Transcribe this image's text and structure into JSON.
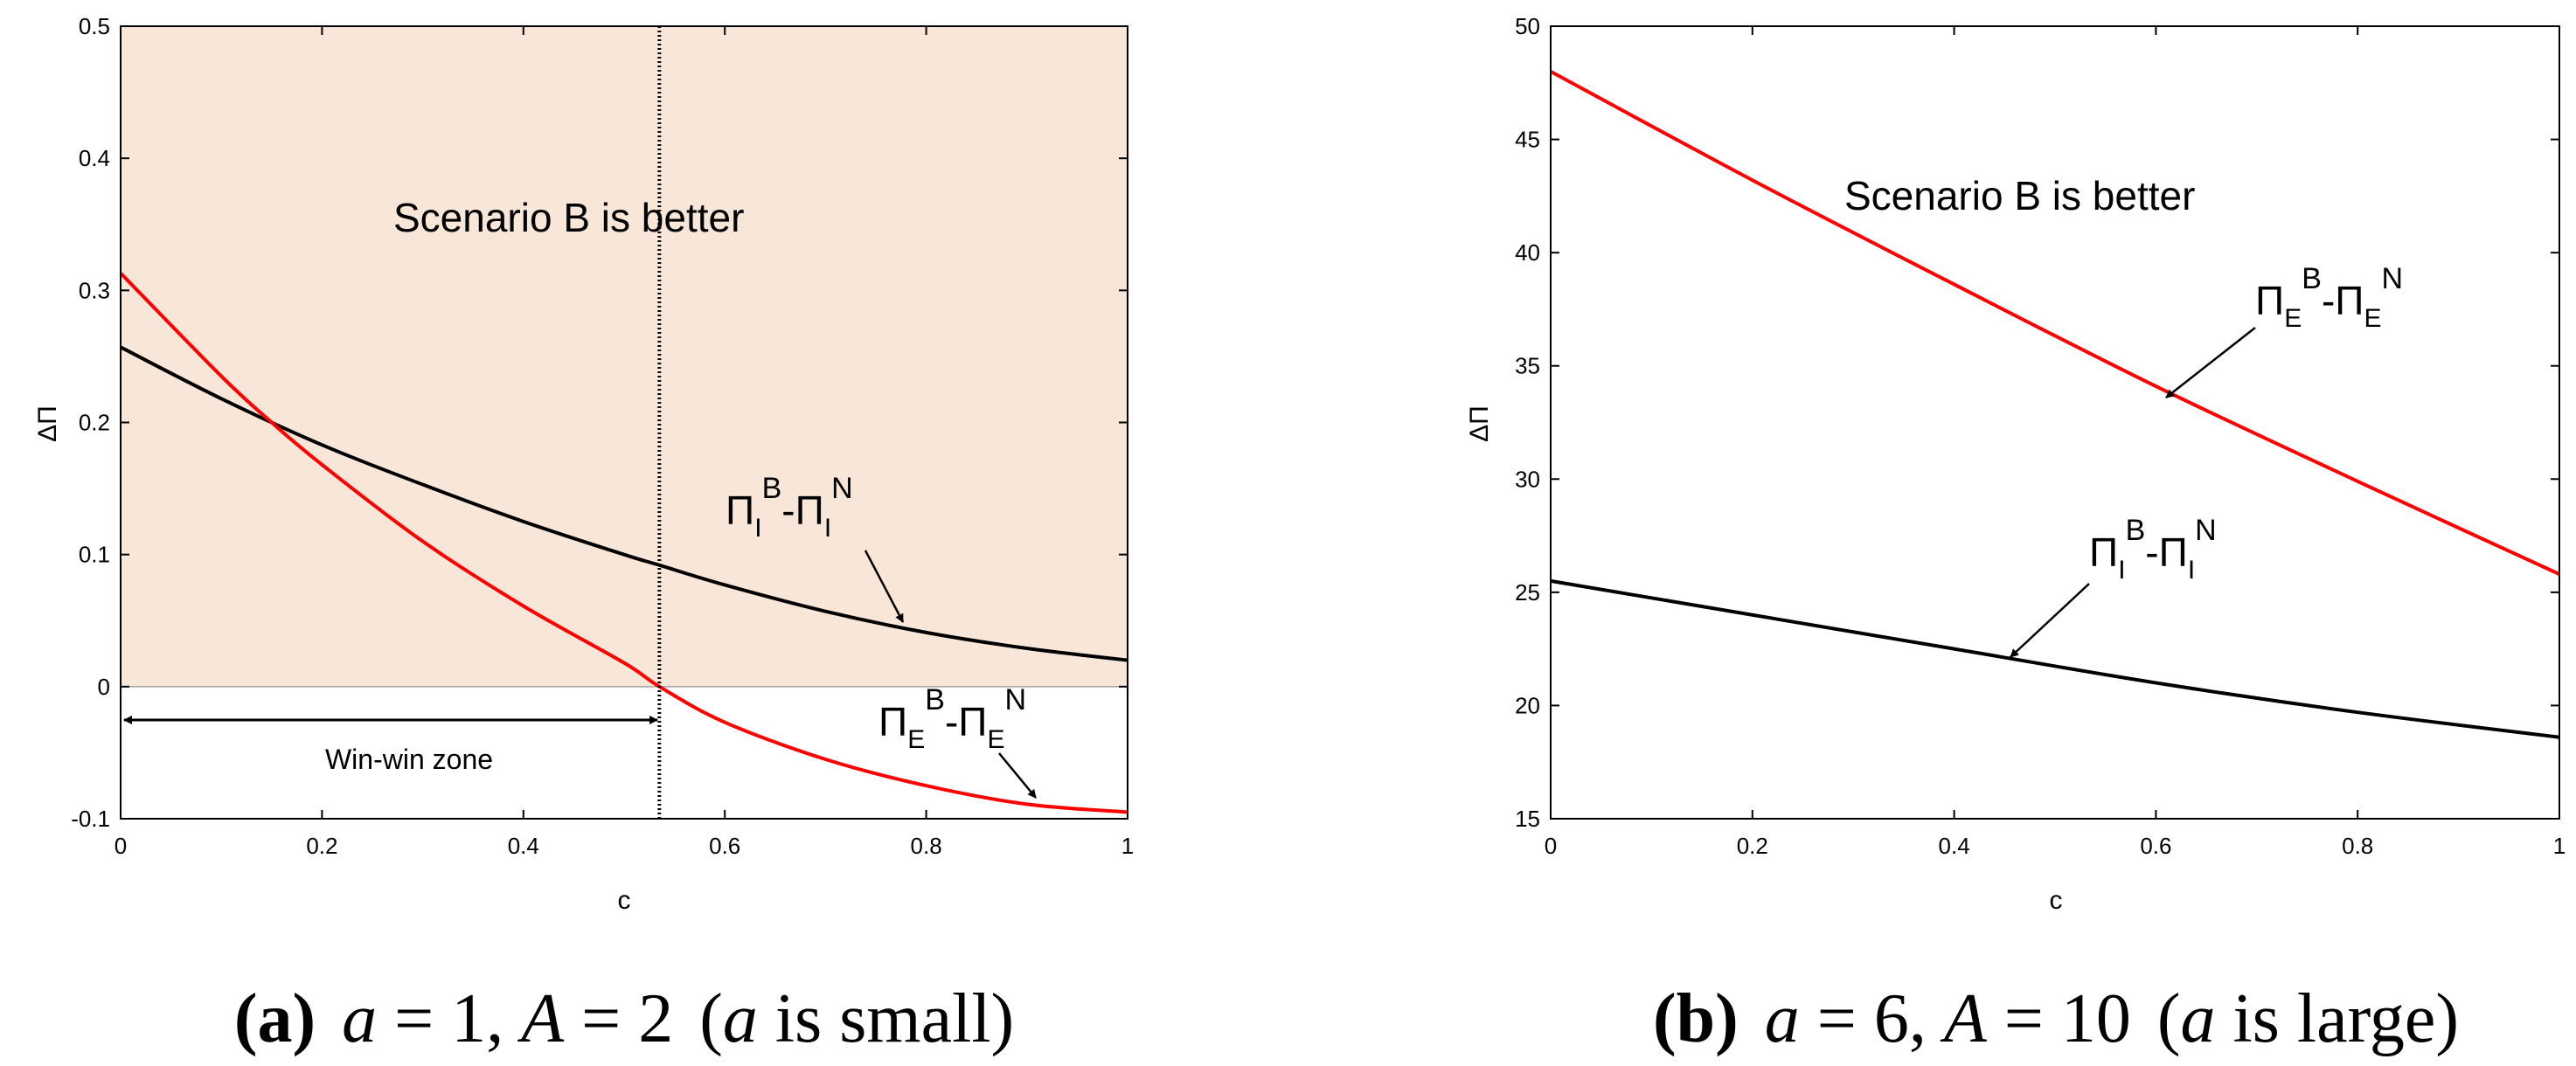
{
  "chart_data": [
    {
      "type": "line",
      "panel": "a",
      "xlabel": "c",
      "ylabel": "ΔΠ",
      "xlim": [
        0,
        1
      ],
      "ylim": [
        -0.1,
        0.5
      ],
      "xticks": [
        "0",
        "0.2",
        "0.4",
        "0.6",
        "0.8",
        "1"
      ],
      "yticks": [
        "-0.1",
        "0",
        "0.1",
        "0.2",
        "0.3",
        "0.4",
        "0.5"
      ],
      "region_text": "Scenario B is better",
      "region_color": "#f8e6d8",
      "threshold_c": 0.535,
      "zone_label": "Win-win zone",
      "series": [
        {
          "name": "Π_I^B - Π_I^N",
          "base": "Π",
          "sub": "I",
          "sup1": "B",
          "minus": "-",
          "sup2": "N",
          "color": "#000000",
          "x": [
            0,
            0.1,
            0.2,
            0.3,
            0.4,
            0.5,
            0.535,
            0.6,
            0.7,
            0.8,
            0.9,
            1.0
          ],
          "values": [
            0.257,
            0.218,
            0.183,
            0.153,
            0.125,
            0.1,
            0.092,
            0.077,
            0.057,
            0.041,
            0.029,
            0.02
          ]
        },
        {
          "name": "Π_E^B - Π_E^N",
          "base": "Π",
          "sub": "E",
          "sup1": "B",
          "minus": "-",
          "sup2": "N",
          "color": "#ff0000",
          "x": [
            0,
            0.1,
            0.15,
            0.2,
            0.3,
            0.4,
            0.5,
            0.535,
            0.6,
            0.7,
            0.8,
            0.9,
            1.0
          ],
          "values": [
            0.313,
            0.235,
            0.2,
            0.168,
            0.11,
            0.061,
            0.018,
            0.0,
            -0.027,
            -0.055,
            -0.075,
            -0.089,
            -0.095
          ]
        }
      ]
    },
    {
      "type": "line",
      "panel": "b",
      "xlabel": "c",
      "ylabel": "ΔΠ",
      "xlim": [
        0,
        1
      ],
      "ylim": [
        15,
        50
      ],
      "xticks": [
        "0",
        "0.2",
        "0.4",
        "0.6",
        "0.8",
        "1"
      ],
      "yticks": [
        "15",
        "20",
        "25",
        "30",
        "35",
        "40",
        "45",
        "50"
      ],
      "region_text": "Scenario B is better",
      "series": [
        {
          "name": "Π_E^B - Π_E^N",
          "base": "Π",
          "sub": "E",
          "sup1": "B",
          "minus": "-",
          "sup2": "N",
          "color": "#ff0000",
          "x": [
            0,
            0.2,
            0.4,
            0.6,
            0.8,
            1.0
          ],
          "values": [
            48.0,
            43.2,
            38.6,
            34.1,
            29.9,
            25.8
          ]
        },
        {
          "name": "Π_I^B - Π_I^N",
          "base": "Π",
          "sub": "I",
          "sup1": "B",
          "minus": "-",
          "sup2": "N",
          "color": "#000000",
          "x": [
            0,
            0.2,
            0.4,
            0.6,
            0.8,
            1.0
          ],
          "values": [
            25.5,
            24.0,
            22.5,
            21.0,
            19.7,
            18.6
          ]
        }
      ]
    }
  ],
  "captions": [
    {
      "label": "(a)",
      "a": "a",
      "eq1": " = 1, ",
      "A": "A",
      "eq2": " = 2",
      "open": "(",
      "a2": "a",
      "tail": " is small)"
    },
    {
      "label": "(b)",
      "a": "a",
      "eq1": " = 6, ",
      "A": "A",
      "eq2": " = 10",
      "open": "(",
      "a2": "a",
      "tail": " is large)"
    }
  ]
}
